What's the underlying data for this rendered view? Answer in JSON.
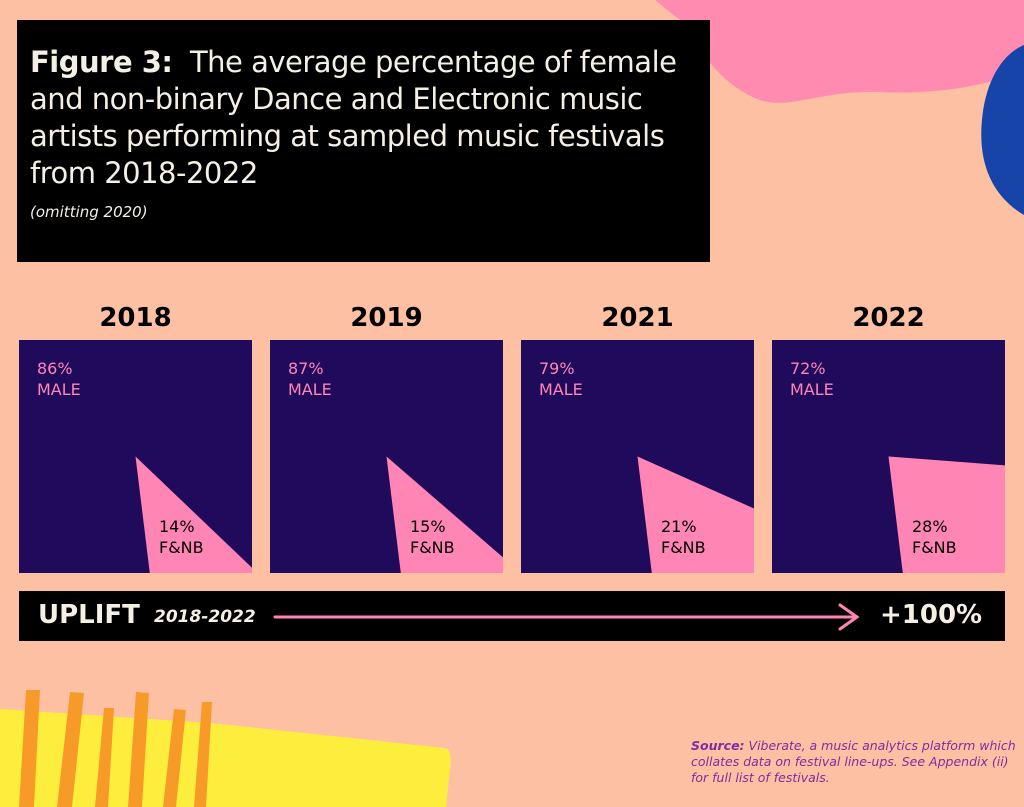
{
  "title": {
    "figure_label": "Figure 3:",
    "text": "The average percentage of female and non-binary Dance and Electronic music artists performing at sampled music festivals from 2018-2022",
    "note": "(omitting 2020)"
  },
  "chart_data": {
    "type": "pie",
    "title": "Figure 3: The average percentage of female and non-binary Dance and Electronic music artists performing at sampled music festivals from 2018-2022",
    "subtitle": "(omitting 2020)",
    "categories": [
      "2018",
      "2019",
      "2021",
      "2022"
    ],
    "series": [
      {
        "name": "MALE",
        "values": [
          86,
          87,
          79,
          72
        ]
      },
      {
        "name": "F&NB",
        "values": [
          14,
          15,
          21,
          28
        ]
      }
    ],
    "panels": [
      {
        "year": "2018",
        "male_pct": "86%",
        "male_label": "MALE",
        "fnb_pct": "14%",
        "fnb_label": "F&NB"
      },
      {
        "year": "2019",
        "male_pct": "87%",
        "male_label": "MALE",
        "fnb_pct": "15%",
        "fnb_label": "F&NB"
      },
      {
        "year": "2021",
        "male_pct": "79%",
        "male_label": "MALE",
        "fnb_pct": "21%",
        "fnb_label": "F&NB"
      },
      {
        "year": "2022",
        "male_pct": "72%",
        "male_label": "MALE",
        "fnb_pct": "28%",
        "fnb_label": "F&NB"
      }
    ],
    "colors": {
      "male": "#200a5c",
      "fnb": "#ff85b4"
    }
  },
  "uplift": {
    "label": "UPLIFT",
    "range": "2018-2022",
    "value": "+100%",
    "arrow_color": "#ff85b4"
  },
  "source": {
    "label": "Source:",
    "text": "Viberate, a music analytics platform which collates data on festival line-ups. See Appendix (ii) for full list of festivals."
  },
  "colors": {
    "background": "#fdc0a2",
    "pink_blob": "#ff8bb0",
    "blue_blob": "#1744a8",
    "yellow": "#fdee3e",
    "orange": "#f89a28"
  }
}
